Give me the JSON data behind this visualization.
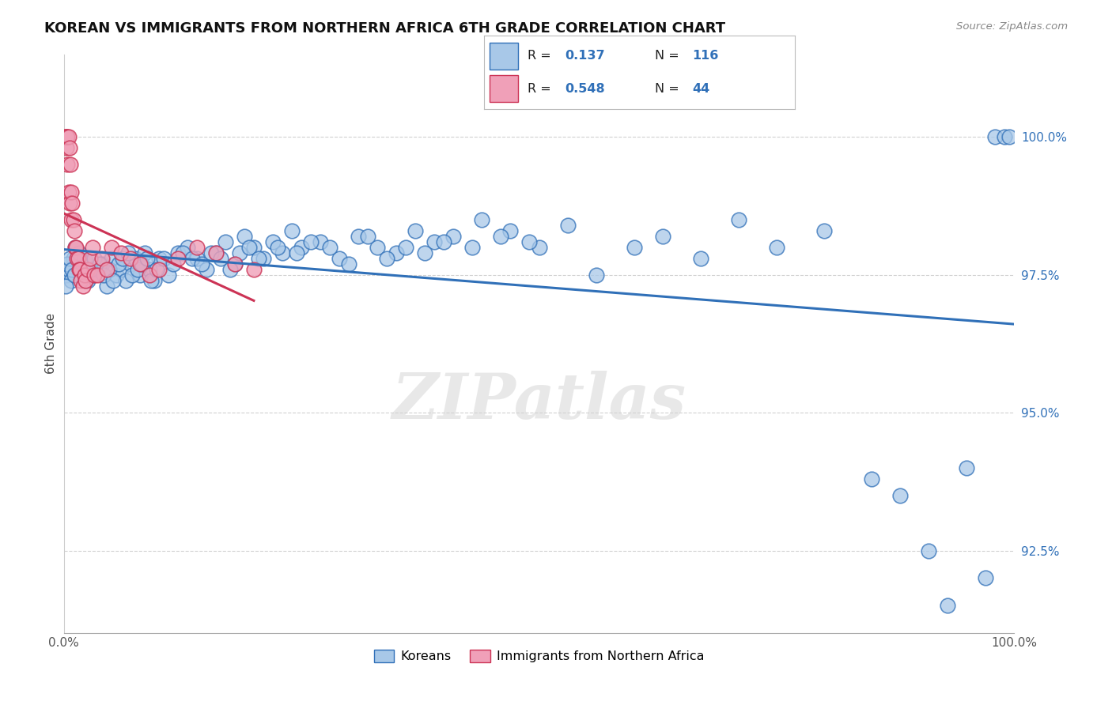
{
  "title": "KOREAN VS IMMIGRANTS FROM NORTHERN AFRICA 6TH GRADE CORRELATION CHART",
  "source_text": "Source: ZipAtlas.com",
  "ylabel": "6th Grade",
  "ytick_labels": [
    "92.5%",
    "95.0%",
    "97.5%",
    "100.0%"
  ],
  "ytick_values": [
    92.5,
    95.0,
    97.5,
    100.0
  ],
  "xmin": 0.0,
  "xmax": 100.0,
  "ymin": 91.0,
  "ymax": 101.5,
  "blue_color": "#a8c8e8",
  "pink_color": "#f0a0b8",
  "trend_blue_color": "#3070b8",
  "trend_pink_color": "#cc3355",
  "watermark": "ZIPatlas",
  "blue_x": [
    0.3,
    0.5,
    0.8,
    1.0,
    1.2,
    1.5,
    1.8,
    2.0,
    2.2,
    2.5,
    3.0,
    3.5,
    4.0,
    4.5,
    5.0,
    5.5,
    6.0,
    6.5,
    7.0,
    7.5,
    8.0,
    8.5,
    9.0,
    9.5,
    10.0,
    11.0,
    12.0,
    13.0,
    14.0,
    15.0,
    16.0,
    17.0,
    18.0,
    19.0,
    20.0,
    21.0,
    22.0,
    23.0,
    24.0,
    25.0,
    27.0,
    29.0,
    31.0,
    33.0,
    35.0,
    37.0,
    39.0,
    41.0,
    44.0,
    47.0,
    50.0,
    53.0,
    56.0,
    60.0,
    63.0,
    67.0,
    71.0,
    75.0,
    80.0,
    85.0,
    88.0,
    91.0,
    93.0,
    95.0,
    97.0,
    98.0,
    99.0,
    99.5,
    0.2,
    0.4,
    0.6,
    0.9,
    1.1,
    1.6,
    2.3,
    2.8,
    3.2,
    3.8,
    4.2,
    4.8,
    5.2,
    5.8,
    6.2,
    6.8,
    7.2,
    7.8,
    8.2,
    8.8,
    9.2,
    9.8,
    10.5,
    11.5,
    12.5,
    13.5,
    14.5,
    15.5,
    16.5,
    17.5,
    18.5,
    19.5,
    20.5,
    22.5,
    24.5,
    26.0,
    28.0,
    30.0,
    32.0,
    34.0,
    36.0,
    38.0,
    40.0,
    43.0,
    46.0,
    49.0
  ],
  "blue_y": [
    97.5,
    97.6,
    97.4,
    97.8,
    98.0,
    97.7,
    97.5,
    97.6,
    97.8,
    97.4,
    97.5,
    97.6,
    97.7,
    97.3,
    97.8,
    97.5,
    97.6,
    97.4,
    97.7,
    97.8,
    97.5,
    97.9,
    97.6,
    97.4,
    97.8,
    97.5,
    97.9,
    98.0,
    97.8,
    97.6,
    97.9,
    98.1,
    97.7,
    98.2,
    98.0,
    97.8,
    98.1,
    97.9,
    98.3,
    98.0,
    98.1,
    97.8,
    98.2,
    98.0,
    97.9,
    98.3,
    98.1,
    98.2,
    98.5,
    98.3,
    98.0,
    98.4,
    97.5,
    98.0,
    98.2,
    97.8,
    98.5,
    98.0,
    98.3,
    93.8,
    93.5,
    92.5,
    91.5,
    94.0,
    92.0,
    100.0,
    100.0,
    100.0,
    97.3,
    97.7,
    97.8,
    97.6,
    97.5,
    97.9,
    97.4,
    97.6,
    97.8,
    97.7,
    97.5,
    97.6,
    97.4,
    97.7,
    97.8,
    97.9,
    97.5,
    97.6,
    97.7,
    97.8,
    97.4,
    97.6,
    97.8,
    97.7,
    97.9,
    97.8,
    97.7,
    97.9,
    97.8,
    97.6,
    97.9,
    98.0,
    97.8,
    98.0,
    97.9,
    98.1,
    98.0,
    97.7,
    98.2,
    97.8,
    98.0,
    97.9,
    98.1,
    98.0,
    98.2,
    98.1
  ],
  "pink_x": [
    0.15,
    0.2,
    0.25,
    0.3,
    0.35,
    0.4,
    0.5,
    0.55,
    0.6,
    0.65,
    0.7,
    0.75,
    0.8,
    0.9,
    1.0,
    1.1,
    1.2,
    1.3,
    1.4,
    1.5,
    1.6,
    1.7,
    1.8,
    2.0,
    2.2,
    2.3,
    2.5,
    2.8,
    3.0,
    3.2,
    3.5,
    4.0,
    4.5,
    5.0,
    6.0,
    7.0,
    8.0,
    9.0,
    10.0,
    12.0,
    14.0,
    16.0,
    18.0,
    20.0
  ],
  "pink_y": [
    100.0,
    100.0,
    99.8,
    100.0,
    99.5,
    100.0,
    100.0,
    99.0,
    99.8,
    98.8,
    99.5,
    98.5,
    99.0,
    98.8,
    98.5,
    98.3,
    98.0,
    98.0,
    97.8,
    97.8,
    97.6,
    97.6,
    97.4,
    97.3,
    97.5,
    97.4,
    97.6,
    97.8,
    98.0,
    97.5,
    97.5,
    97.8,
    97.6,
    98.0,
    97.9,
    97.8,
    97.7,
    97.5,
    97.6,
    97.8,
    98.0,
    97.9,
    97.7,
    97.6
  ]
}
